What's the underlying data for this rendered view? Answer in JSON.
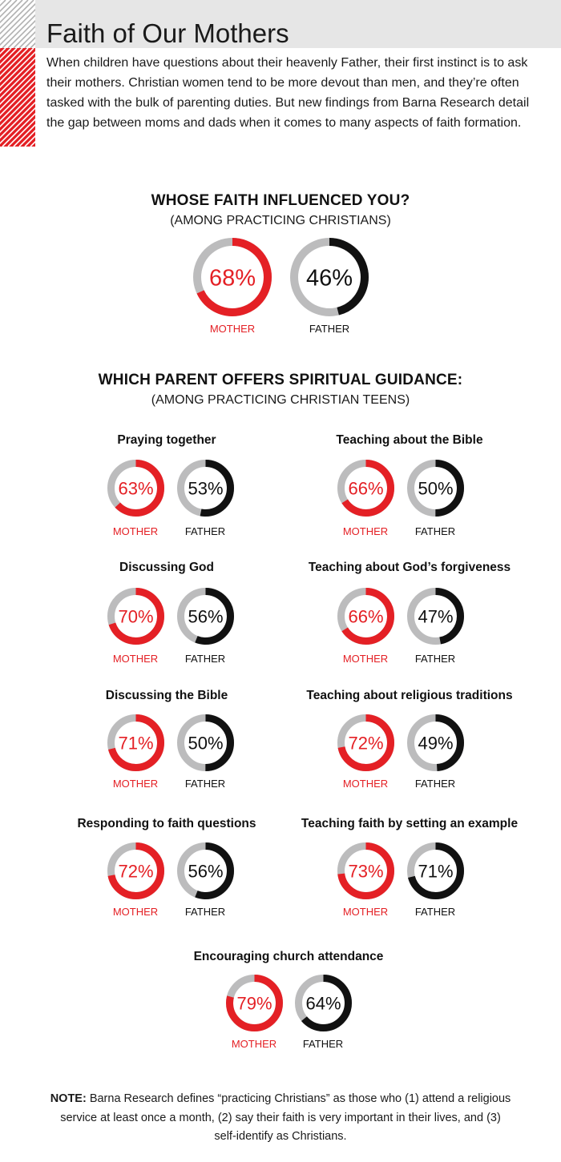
{
  "header": {
    "title": "Faith of Our Mothers",
    "intro": "When children have questions about their heavenly Father, their first instinct is to ask their mothers. Christian women tend to be more devout than men, and they’re often tasked with the bulk of parenting duties. But new findings from Barna Research detail the gap between moms and dads when it comes to many aspects of faith formation."
  },
  "colors": {
    "mother": "#e42025",
    "father": "#111111",
    "track": "#bcbcbd",
    "stripe_red": "#e42025",
    "band": "#e6e6e6"
  },
  "sections": {
    "influence": {
      "title": "WHOSE FAITH INFLUENCED YOU?",
      "subtitle": "(AMONG PRACTICING CHRISTIANS)"
    },
    "guidance": {
      "title": "WHICH PARENT OFFERS SPIRITUAL GUIDANCE:",
      "subtitle": "(AMONG PRACTICING CHRISTIAN TEENS)"
    }
  },
  "chart_data": [
    {
      "type": "pie",
      "title": "WHOSE FAITH INFLUENCED YOU?",
      "subtitle": "(AMONG PRACTICING CHRISTIANS)",
      "categories": [
        "MOTHER",
        "FATHER"
      ],
      "values": [
        68,
        46
      ],
      "value_labels": [
        "68%",
        "46%"
      ]
    },
    {
      "type": "pie",
      "title": "WHICH PARENT OFFERS SPIRITUAL GUIDANCE:",
      "subtitle": "(AMONG PRACTICING CHRISTIAN TEENS)",
      "categories": [
        "MOTHER",
        "FATHER"
      ],
      "panels": [
        {
          "label": "Praying together",
          "values": [
            63,
            53
          ],
          "value_labels": [
            "63%",
            "53%"
          ]
        },
        {
          "label": "Teaching about the Bible",
          "values": [
            66,
            50
          ],
          "value_labels": [
            "66%",
            "50%"
          ]
        },
        {
          "label": "Discussing God",
          "values": [
            70,
            56
          ],
          "value_labels": [
            "70%",
            "56%"
          ]
        },
        {
          "label": "Teaching about God’s forgiveness",
          "values": [
            66,
            47
          ],
          "value_labels": [
            "66%",
            "47%"
          ]
        },
        {
          "label": "Discussing the Bible",
          "values": [
            71,
            50
          ],
          "value_labels": [
            "71%",
            "50%"
          ]
        },
        {
          "label": "Teaching about religious traditions",
          "values": [
            72,
            49
          ],
          "value_labels": [
            "72%",
            "49%"
          ]
        },
        {
          "label": "Responding to faith questions",
          "values": [
            72,
            56
          ],
          "value_labels": [
            "72%",
            "56%"
          ]
        },
        {
          "label": "Teaching faith by setting an example",
          "values": [
            73,
            71
          ],
          "value_labels": [
            "73%",
            "71%"
          ]
        },
        {
          "label": "Encouraging church attendance",
          "values": [
            79,
            64
          ],
          "value_labels": [
            "79%",
            "64%"
          ]
        }
      ]
    }
  ],
  "note": {
    "label": "NOTE:",
    "text": " Barna Research defines “practicing Christians” as those who (1) attend a religious service at least once a month, (2) say their faith is very important in their lives, and (3) self-identify as Christians."
  }
}
